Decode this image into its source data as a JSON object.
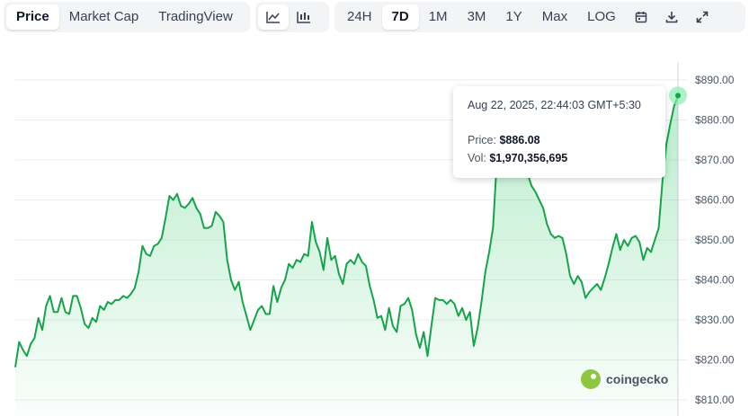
{
  "toolbar": {
    "view_tabs": [
      "Price",
      "Market Cap",
      "TradingView"
    ],
    "range_tabs": [
      "24H",
      "7D",
      "1M",
      "3M",
      "1Y",
      "Max",
      "LOG"
    ],
    "active_view": "Price",
    "active_range": "7D",
    "chart_mode_icons": [
      "line-chart-icon",
      "candlestick-chart-icon"
    ],
    "action_icons": [
      "calendar-icon",
      "download-icon",
      "fullscreen-icon"
    ]
  },
  "tooltip": {
    "date": "Aug 22, 2025, 22:44:03 GMT+5:30",
    "price_label": "Price:",
    "price_value": "$886.08",
    "vol_label": "Vol:",
    "vol_value": "$1,970,356,695"
  },
  "watermark": {
    "text": "coingecko"
  },
  "colors": {
    "line": "#16a34a",
    "fill": "#22c55e",
    "grid": "#ececec",
    "accent_dot": "#86efac"
  },
  "chart_data": {
    "type": "area",
    "title": "",
    "xlabel": "",
    "ylabel": "",
    "ylim": [
      806,
      892
    ],
    "y_ticks": [
      810,
      820,
      830,
      840,
      850,
      860,
      870,
      880,
      890
    ],
    "y_tick_labels": [
      "$810.00",
      "$820.00",
      "$830.00",
      "$840.00",
      "$850.00",
      "$860.00",
      "$870.00",
      "$880.00",
      "$890.00"
    ],
    "grid": true,
    "highlight_last_point": true,
    "series": [
      {
        "values": [
          818.2,
          824.5,
          822.5,
          821.0,
          824.0,
          825.5,
          830.5,
          827.5,
          833.5,
          836.0,
          832.0,
          832.0,
          835.5,
          832.0,
          831.5,
          836.0,
          836.0,
          833.0,
          829.0,
          828.0,
          830.5,
          829.5,
          833.5,
          832.5,
          834.5,
          834.0,
          835.0,
          835.0,
          836.0,
          835.5,
          836.5,
          838.0,
          842.0,
          848.5,
          846.5,
          846.0,
          848.5,
          849.0,
          850.5,
          855.5,
          861.0,
          860.0,
          861.5,
          858.5,
          858.0,
          859.0,
          860.5,
          858.0,
          856.5,
          853.0,
          853.0,
          853.5,
          857.0,
          856.0,
          854.5,
          845.0,
          840.0,
          837.5,
          839.5,
          834.5,
          831.0,
          827.5,
          830.0,
          832.5,
          833.5,
          831.5,
          831.5,
          838.5,
          834.5,
          838.0,
          840.0,
          844.0,
          843.0,
          845.0,
          844.5,
          846.5,
          846.0,
          854.5,
          849.5,
          847.0,
          842.5,
          850.5,
          845.0,
          846.0,
          841.5,
          839.0,
          844.0,
          845.0,
          844.0,
          846.5,
          844.5,
          843.5,
          838.5,
          835.0,
          830.5,
          831.0,
          827.5,
          833.0,
          828.5,
          827.0,
          833.5,
          834.0,
          835.5,
          832.5,
          826.5,
          823.0,
          827.0,
          821.0,
          828.5,
          835.5,
          835.0,
          835.0,
          834.0,
          835.0,
          834.0,
          831.0,
          833.0,
          830.0,
          832.0,
          823.5,
          828.0,
          834.5,
          842.0,
          847.0,
          853.0,
          870.0,
          879.0,
          877.0,
          876.0,
          875.0,
          874.0,
          876.0,
          872.0,
          866.5,
          863.5,
          862.0,
          860.0,
          858.0,
          854.0,
          851.5,
          850.5,
          851.0,
          850.5,
          846.5,
          841.0,
          839.0,
          841.0,
          839.5,
          835.5,
          837.0,
          838.0,
          839.0,
          837.5,
          840.5,
          844.0,
          848.0,
          851.5,
          847.5,
          850.0,
          848.5,
          850.5,
          851.0,
          849.5,
          845.0,
          848.0,
          847.0,
          850.0,
          853.0,
          865.0,
          874.0,
          879.0,
          883.5,
          886.08
        ]
      }
    ]
  }
}
